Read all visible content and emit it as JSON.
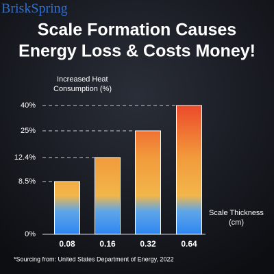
{
  "watermark": "BriskSpring",
  "chart_data": {
    "type": "bar",
    "title": [
      "Scale Formation Causes",
      "Energy Loss & Costs Money!"
    ],
    "y_label": [
      "Increased Heat",
      "Consumption (%)"
    ],
    "x_label": [
      "Scale Thickness",
      "(cm)"
    ],
    "categories": [
      "0.08",
      "0.16",
      "0.32",
      "0.64"
    ],
    "values": [
      8.5,
      12.4,
      25,
      40
    ],
    "ylim": [
      0,
      40
    ],
    "yticks": [
      {
        "value": 0,
        "label": "0%"
      },
      {
        "value": 8.5,
        "label": "8.5%"
      },
      {
        "value": 12.4,
        "label": "12.4%"
      },
      {
        "value": 25,
        "label": "25%"
      },
      {
        "value": 40,
        "label": "40%"
      }
    ],
    "source": "*Sourcing from: United States Department of Energy, 2022"
  }
}
